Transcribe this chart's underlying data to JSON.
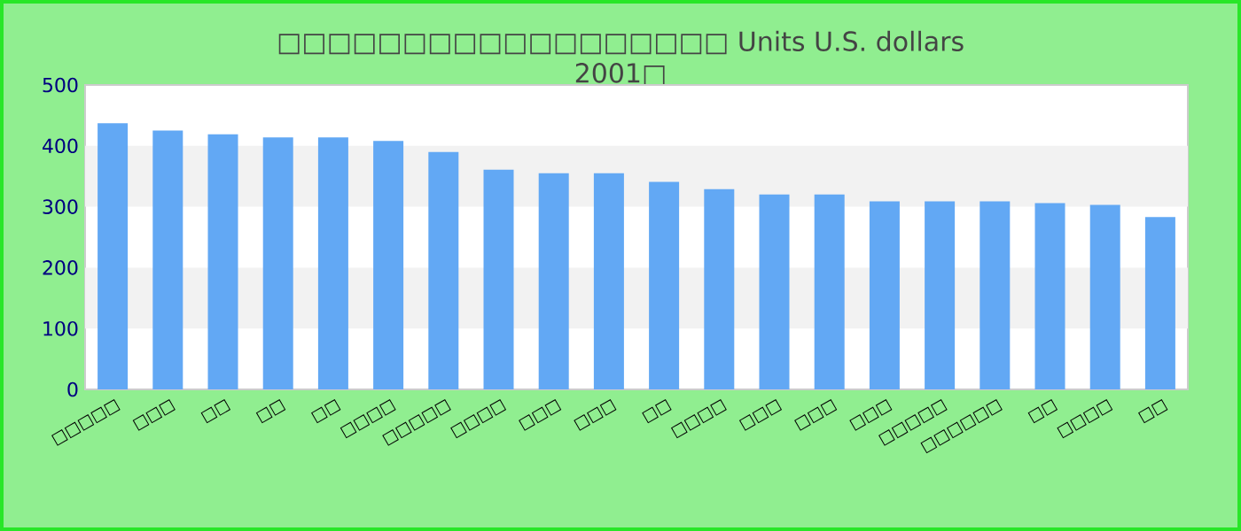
{
  "chart_data": {
    "type": "bar",
    "title": "□□□□□□□□□□□□□□□□□□ Units U.S. dollars",
    "subtitle": "2001□",
    "categories": [
      "□□□□□",
      "□□□",
      "□□",
      "□□",
      "□□",
      "□□□□",
      "□□□□□",
      "□□□□",
      "□□□",
      "□□□",
      "□□",
      "□□□□",
      "□□□",
      "□□□",
      "□□□",
      "□□□□□",
      "□□□□□□",
      "□□",
      "□□□□",
      "□□"
    ],
    "values": [
      437,
      425,
      419,
      414,
      414,
      408,
      390,
      361,
      355,
      355,
      341,
      329,
      320,
      320,
      309,
      309,
      309,
      306,
      303,
      283
    ],
    "color": "#62a8f4",
    "ylim": [
      0,
      500
    ],
    "yticks": [
      0,
      100,
      200,
      300,
      400,
      500
    ],
    "bands": [
      {
        "axis": "y",
        "from": 100,
        "to": 200,
        "color": "#f2f2f2"
      },
      {
        "axis": "y",
        "from": 300,
        "to": 400,
        "color": "#f2f2f2"
      }
    ]
  }
}
